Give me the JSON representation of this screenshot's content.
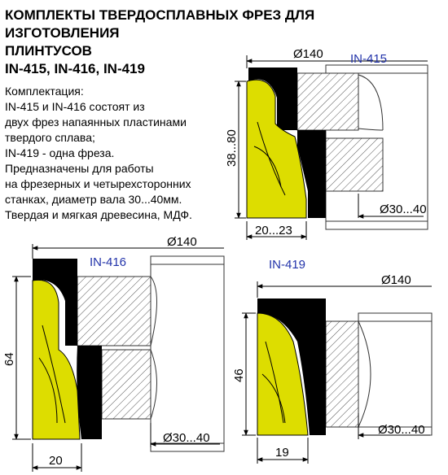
{
  "title": {
    "line1": "КОМПЛЕКТЫ ТВЕРДОСПЛАВНЫХ ФРЕЗ ДЛЯ",
    "line2": "ИЗГОТОВЛЕНИЯ",
    "line3": "ПЛИНТУСОВ",
    "line4": "IN-415, IN-416, IN-419"
  },
  "description": [
    "Комплектация:",
    "IN-415 и IN-416 состоят из",
    "двух фрез напаянных пластинами",
    "твердого сплава;",
    "IN-419 - одна фреза.",
    "Предназначены для работы",
    "на фрезерных и четырехсторонних",
    "станках, диаметр вала 30...40мм.",
    "Твердая и мягкая древесина, МДФ."
  ],
  "cutters": [
    {
      "model": "IN-415",
      "diameter": "Ø140",
      "height": "38...80",
      "width": "20...23",
      "bore": "Ø30...40"
    },
    {
      "model": "IN-416",
      "diameter": "Ø140",
      "height": "64",
      "width": "20",
      "bore": "Ø30...40"
    },
    {
      "model": "IN-419",
      "diameter": "Ø140",
      "height": "46",
      "width": "19",
      "bore": "Ø30...40"
    }
  ],
  "colors": {
    "profile": "#dddd00",
    "knife": "#000000",
    "model_label": "#2233aa"
  }
}
